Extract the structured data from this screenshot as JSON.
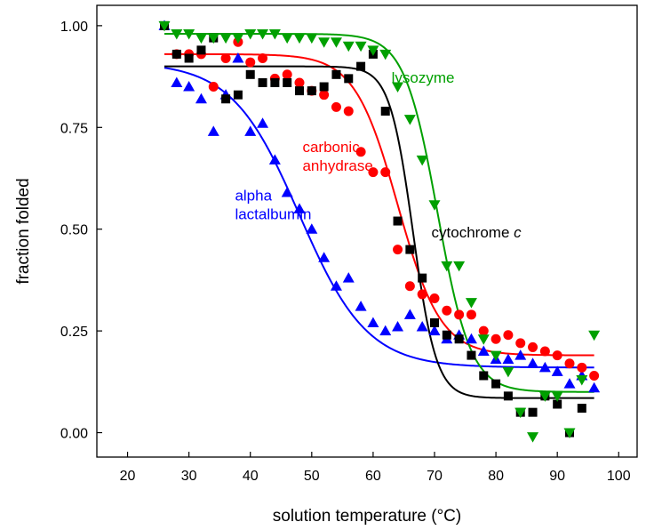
{
  "chart_data": {
    "type": "scatter",
    "xlabel": "solution temperature (°C)",
    "ylabel": "fraction folded",
    "xlim": [
      15,
      103
    ],
    "ylim": [
      -0.06,
      1.05
    ],
    "x_ticks": [
      20,
      30,
      40,
      50,
      60,
      70,
      80,
      90,
      100
    ],
    "x_tick_labels": [
      "20",
      "30",
      "40",
      "50",
      "60",
      "70",
      "80",
      "90",
      "100"
    ],
    "y_ticks": [
      0.0,
      0.25,
      0.5,
      0.75,
      1.0
    ],
    "y_tick_labels": [
      "0.00",
      "0.25",
      "0.50",
      "0.75",
      "1.00"
    ],
    "grid": false,
    "legend": "none (direct labels)",
    "series": [
      {
        "name": "alpha lactalbumin",
        "color": "#0000ff",
        "marker": "triangle-up",
        "points": [
          [
            26,
            1.0
          ],
          [
            28,
            0.86
          ],
          [
            30,
            0.85
          ],
          [
            32,
            0.82
          ],
          [
            34,
            0.74
          ],
          [
            36,
            0.83
          ],
          [
            38,
            0.92
          ],
          [
            40,
            0.74
          ],
          [
            42,
            0.76
          ],
          [
            44,
            0.67
          ],
          [
            46,
            0.59
          ],
          [
            48,
            0.55
          ],
          [
            50,
            0.5
          ],
          [
            52,
            0.43
          ],
          [
            54,
            0.36
          ],
          [
            56,
            0.38
          ],
          [
            58,
            0.31
          ],
          [
            60,
            0.27
          ],
          [
            62,
            0.25
          ],
          [
            64,
            0.26
          ],
          [
            66,
            0.29
          ],
          [
            68,
            0.26
          ],
          [
            70,
            0.25
          ],
          [
            72,
            0.23
          ],
          [
            74,
            0.24
          ],
          [
            76,
            0.23
          ],
          [
            78,
            0.2
          ],
          [
            80,
            0.18
          ],
          [
            82,
            0.18
          ],
          [
            84,
            0.19
          ],
          [
            86,
            0.17
          ],
          [
            88,
            0.16
          ],
          [
            90,
            0.15
          ],
          [
            92,
            0.12
          ],
          [
            94,
            0.14
          ],
          [
            96,
            0.11
          ]
        ],
        "fit": {
          "model": "sigmoid",
          "top": 0.91,
          "bottom": 0.16,
          "midpoint": 48,
          "width": 5.5
        }
      },
      {
        "name": "carbonic anhydrase",
        "color": "#ff0000",
        "marker": "circle",
        "points": [
          [
            28,
            0.93
          ],
          [
            30,
            0.93
          ],
          [
            32,
            0.93
          ],
          [
            34,
            0.85
          ],
          [
            36,
            0.92
          ],
          [
            38,
            0.96
          ],
          [
            40,
            0.91
          ],
          [
            42,
            0.92
          ],
          [
            44,
            0.87
          ],
          [
            46,
            0.88
          ],
          [
            48,
            0.86
          ],
          [
            50,
            0.84
          ],
          [
            52,
            0.83
          ],
          [
            54,
            0.8
          ],
          [
            56,
            0.79
          ],
          [
            58,
            0.69
          ],
          [
            60,
            0.64
          ],
          [
            62,
            0.64
          ],
          [
            64,
            0.45
          ],
          [
            66,
            0.36
          ],
          [
            68,
            0.34
          ],
          [
            70,
            0.33
          ],
          [
            72,
            0.3
          ],
          [
            74,
            0.29
          ],
          [
            76,
            0.29
          ],
          [
            78,
            0.25
          ],
          [
            80,
            0.23
          ],
          [
            82,
            0.24
          ],
          [
            84,
            0.22
          ],
          [
            86,
            0.21
          ],
          [
            88,
            0.2
          ],
          [
            90,
            0.19
          ],
          [
            92,
            0.17
          ],
          [
            94,
            0.16
          ],
          [
            96,
            0.14
          ]
        ],
        "fit": {
          "model": "sigmoid",
          "top": 0.93,
          "bottom": 0.19,
          "midpoint": 64,
          "width": 3.5
        }
      },
      {
        "name": "cytochrome c",
        "color": "#000000",
        "marker": "square",
        "points": [
          [
            26,
            1.0
          ],
          [
            28,
            0.93
          ],
          [
            30,
            0.92
          ],
          [
            32,
            0.94
          ],
          [
            34,
            0.97
          ],
          [
            36,
            0.82
          ],
          [
            38,
            0.83
          ],
          [
            40,
            0.88
          ],
          [
            42,
            0.86
          ],
          [
            44,
            0.86
          ],
          [
            46,
            0.86
          ],
          [
            48,
            0.84
          ],
          [
            50,
            0.84
          ],
          [
            52,
            0.85
          ],
          [
            54,
            0.88
          ],
          [
            56,
            0.87
          ],
          [
            58,
            0.9
          ],
          [
            60,
            0.93
          ],
          [
            62,
            0.79
          ],
          [
            64,
            0.52
          ],
          [
            66,
            0.45
          ],
          [
            68,
            0.38
          ],
          [
            70,
            0.27
          ],
          [
            72,
            0.24
          ],
          [
            74,
            0.23
          ],
          [
            76,
            0.19
          ],
          [
            78,
            0.14
          ],
          [
            80,
            0.12
          ],
          [
            82,
            0.09
          ],
          [
            84,
            0.05
          ],
          [
            86,
            0.05
          ],
          [
            88,
            0.09
          ],
          [
            90,
            0.07
          ],
          [
            92,
            0.0
          ],
          [
            94,
            0.06
          ]
        ],
        "fit": {
          "model": "sigmoid",
          "top": 0.9,
          "bottom": 0.085,
          "midpoint": 66.5,
          "width": 1.9
        }
      },
      {
        "name": "lysozyme",
        "color": "#00a000",
        "marker": "triangle-down",
        "points": [
          [
            26,
            1.0
          ],
          [
            28,
            0.98
          ],
          [
            30,
            0.98
          ],
          [
            32,
            0.97
          ],
          [
            34,
            0.97
          ],
          [
            36,
            0.97
          ],
          [
            38,
            0.97
          ],
          [
            40,
            0.98
          ],
          [
            42,
            0.98
          ],
          [
            44,
            0.98
          ],
          [
            46,
            0.97
          ],
          [
            48,
            0.97
          ],
          [
            50,
            0.97
          ],
          [
            52,
            0.96
          ],
          [
            54,
            0.96
          ],
          [
            56,
            0.95
          ],
          [
            58,
            0.95
          ],
          [
            60,
            0.94
          ],
          [
            62,
            0.93
          ],
          [
            64,
            0.85
          ],
          [
            66,
            0.77
          ],
          [
            68,
            0.67
          ],
          [
            70,
            0.56
          ],
          [
            72,
            0.41
          ],
          [
            74,
            0.41
          ],
          [
            76,
            0.32
          ],
          [
            78,
            0.23
          ],
          [
            80,
            0.19
          ],
          [
            82,
            0.15
          ],
          [
            84,
            0.05
          ],
          [
            86,
            -0.01
          ],
          [
            88,
            0.09
          ],
          [
            90,
            0.09
          ],
          [
            92,
            0.0
          ],
          [
            94,
            0.13
          ],
          [
            96,
            0.24
          ]
        ],
        "fit": {
          "model": "sigmoid",
          "top": 0.98,
          "bottom": 0.1,
          "midpoint": 70.5,
          "width": 2.7
        }
      }
    ],
    "annotations": [
      {
        "lines": [
          "lysozyme"
        ],
        "color": "#00a000",
        "at": [
          63,
          0.86
        ]
      },
      {
        "lines": [
          "carbonic",
          "anhydrase"
        ],
        "color": "#ff0000",
        "at": [
          48.5,
          0.69
        ]
      },
      {
        "lines": [
          "alpha",
          "lactalbumin"
        ],
        "color": "#0000ff",
        "at": [
          37.5,
          0.57
        ]
      },
      {
        "lines": [
          "cytochrome c"
        ],
        "italic_suffix": "c",
        "color": "#000000",
        "at": [
          69.5,
          0.48
        ]
      }
    ]
  }
}
